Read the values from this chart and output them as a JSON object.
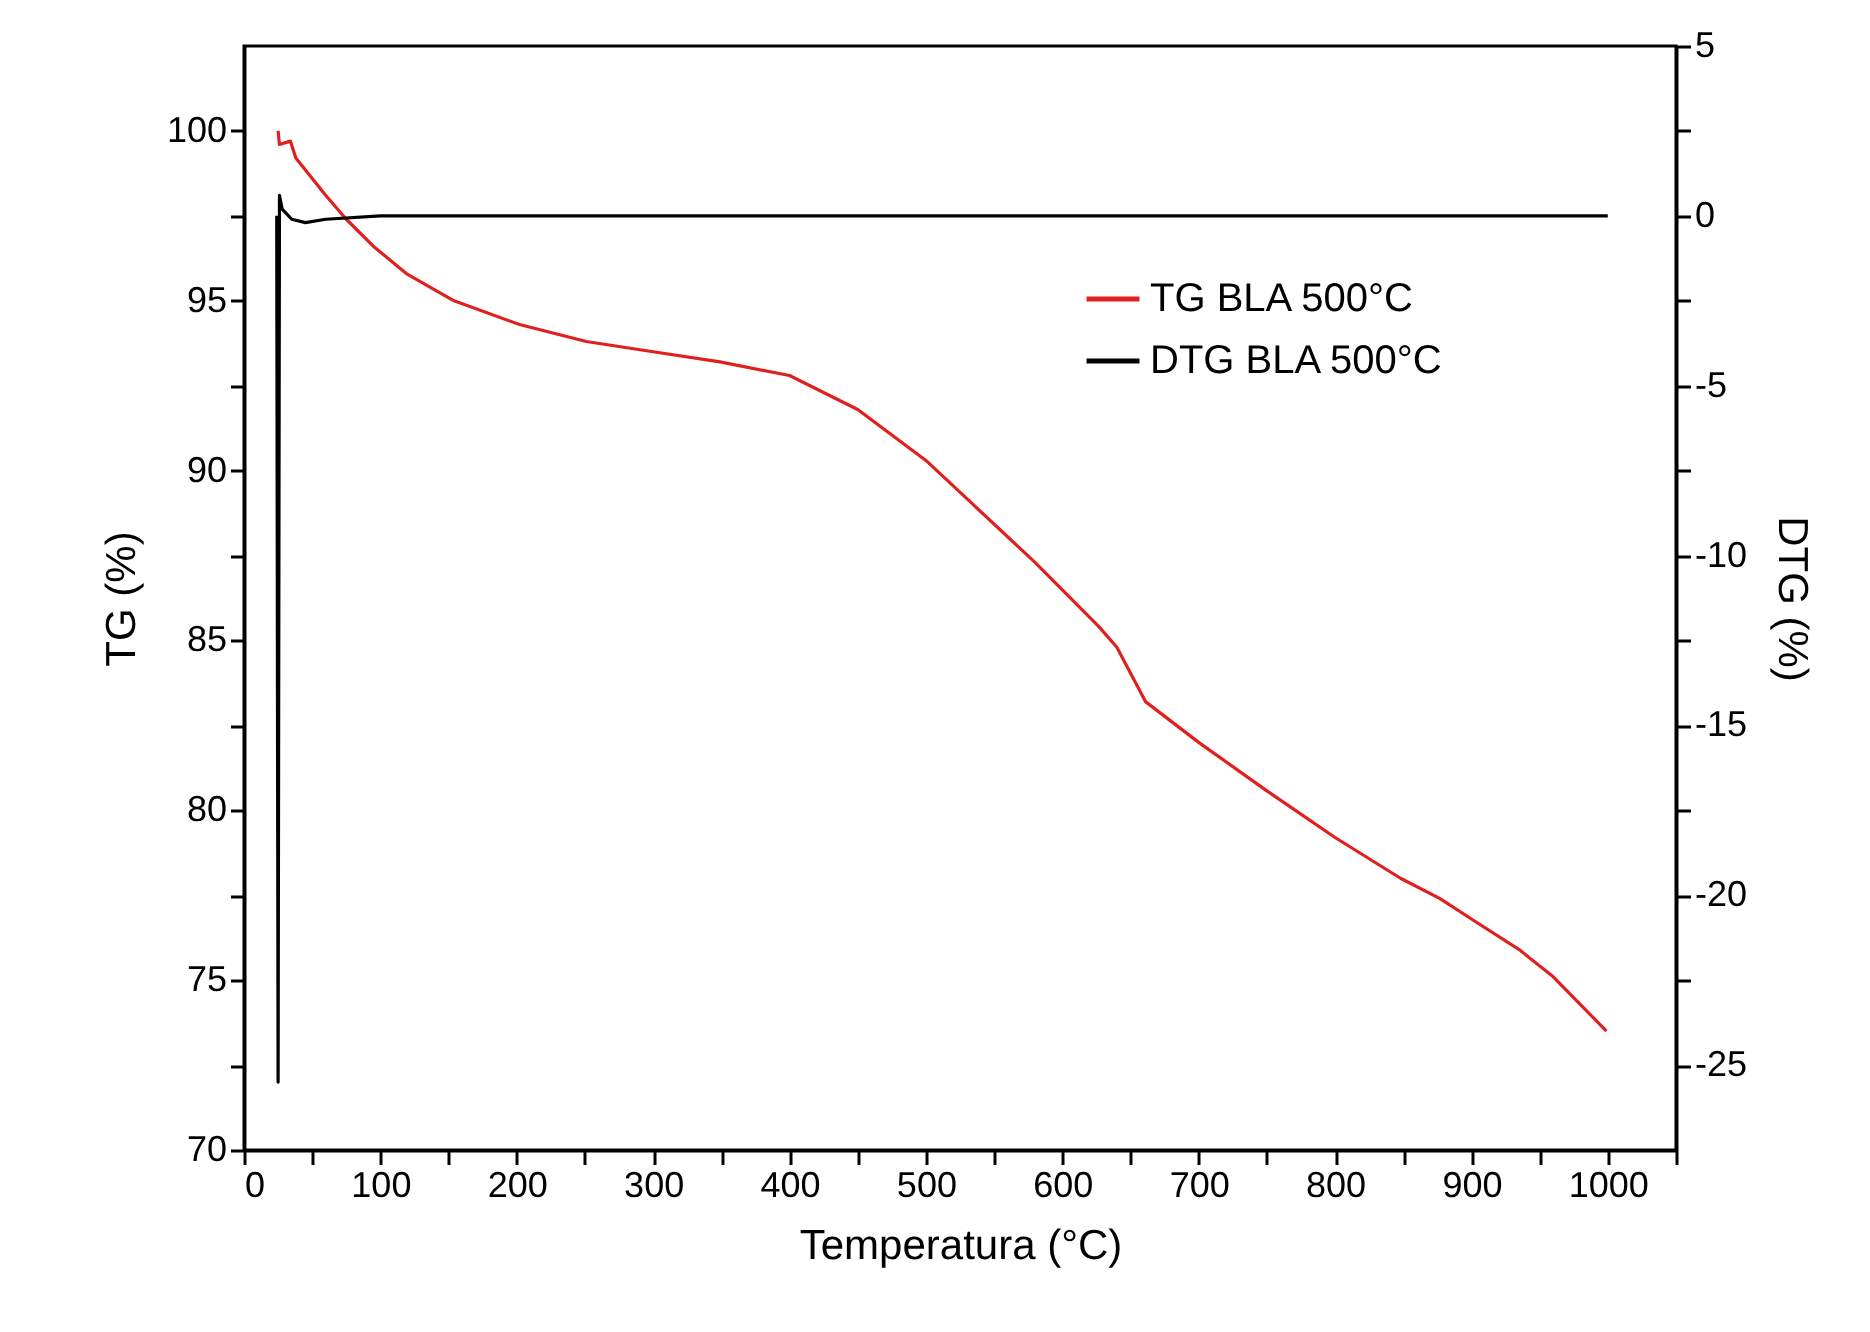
{
  "chart_data": {
    "type": "line",
    "xlabel": "Temperatura (°C)",
    "ylabel": "TG (%)",
    "y2label": "DTG (%)",
    "xlim": [
      0,
      1050
    ],
    "xticks": [
      0,
      {
        "value": 50,
        "label": null
      },
      100,
      {
        "value": 150,
        "label": null
      },
      200,
      {
        "value": 250,
        "label": null
      },
      300,
      {
        "value": 350,
        "label": null
      },
      400,
      {
        "value": 450,
        "label": null
      },
      500,
      {
        "value": 550,
        "label": null
      },
      600,
      {
        "value": 650,
        "label": null
      },
      700,
      {
        "value": 750,
        "label": null
      },
      800,
      {
        "value": 850,
        "label": null
      },
      900,
      {
        "value": 950,
        "label": null
      },
      1000,
      {
        "value": 1050,
        "label": null
      }
    ],
    "ylim": [
      70,
      102.5
    ],
    "yticks": [
      70,
      {
        "value": 72.5,
        "label": null
      },
      75,
      {
        "value": 77.5,
        "label": null
      },
      80,
      {
        "value": 82.5,
        "label": null
      },
      85,
      {
        "value": 87.5,
        "label": null
      },
      90,
      {
        "value": 92.5,
        "label": null
      },
      95,
      {
        "value": 97.5,
        "label": null
      },
      100
    ],
    "y2lim": [
      -27.5,
      5
    ],
    "y2ticks": [
      -25,
      {
        "value": -22.5,
        "label": null
      },
      -20,
      {
        "value": -17.5,
        "label": null
      },
      -15,
      {
        "value": -12.5,
        "label": null
      },
      -10,
      {
        "value": -7.5,
        "label": null
      },
      -5,
      {
        "value": -2.5,
        "label": null
      },
      0,
      {
        "value": 2.5,
        "label": null
      },
      5
    ],
    "legend": "top right",
    "grid": false,
    "marker": "none",
    "line_style": "solid",
    "series": [
      {
        "name": "TG BLA 500°C",
        "color": "#e0201e",
        "x": [
          25,
          26,
          34,
          38,
          48,
          60,
          75,
          95,
          119,
          154,
          202,
          251,
          300,
          349,
          400,
          450,
          500,
          532,
          580,
          627,
          640,
          661,
          700,
          749,
          800,
          848,
          877,
          900,
          935,
          960,
          999
        ],
        "values": [
          100,
          99.6,
          99.7,
          99.2,
          98.7,
          98.1,
          97.4,
          96.6,
          95.8,
          95.0,
          94.3,
          93.8,
          93.5,
          93.2,
          92.8,
          91.8,
          90.3,
          89.1,
          87.3,
          85.4,
          84.8,
          83.2,
          82.0,
          80.6,
          79.2,
          78.0,
          77.4,
          76.8,
          75.9,
          75.1,
          73.5
        ]
      },
      {
        "name": "DTG BLA 500°C",
        "color": "#000000",
        "axis": "y2",
        "x": [
          24,
          25,
          26,
          28,
          35,
          45,
          60,
          100,
          200,
          300,
          400,
          500,
          600,
          700,
          800,
          880,
          900,
          1000
        ],
        "values": [
          0,
          -25.5,
          0.6,
          0.2,
          -0.1,
          -0.2,
          -0.1,
          0,
          0,
          0,
          0,
          0,
          0,
          0,
          0,
          0,
          0,
          0
        ]
      }
    ]
  }
}
